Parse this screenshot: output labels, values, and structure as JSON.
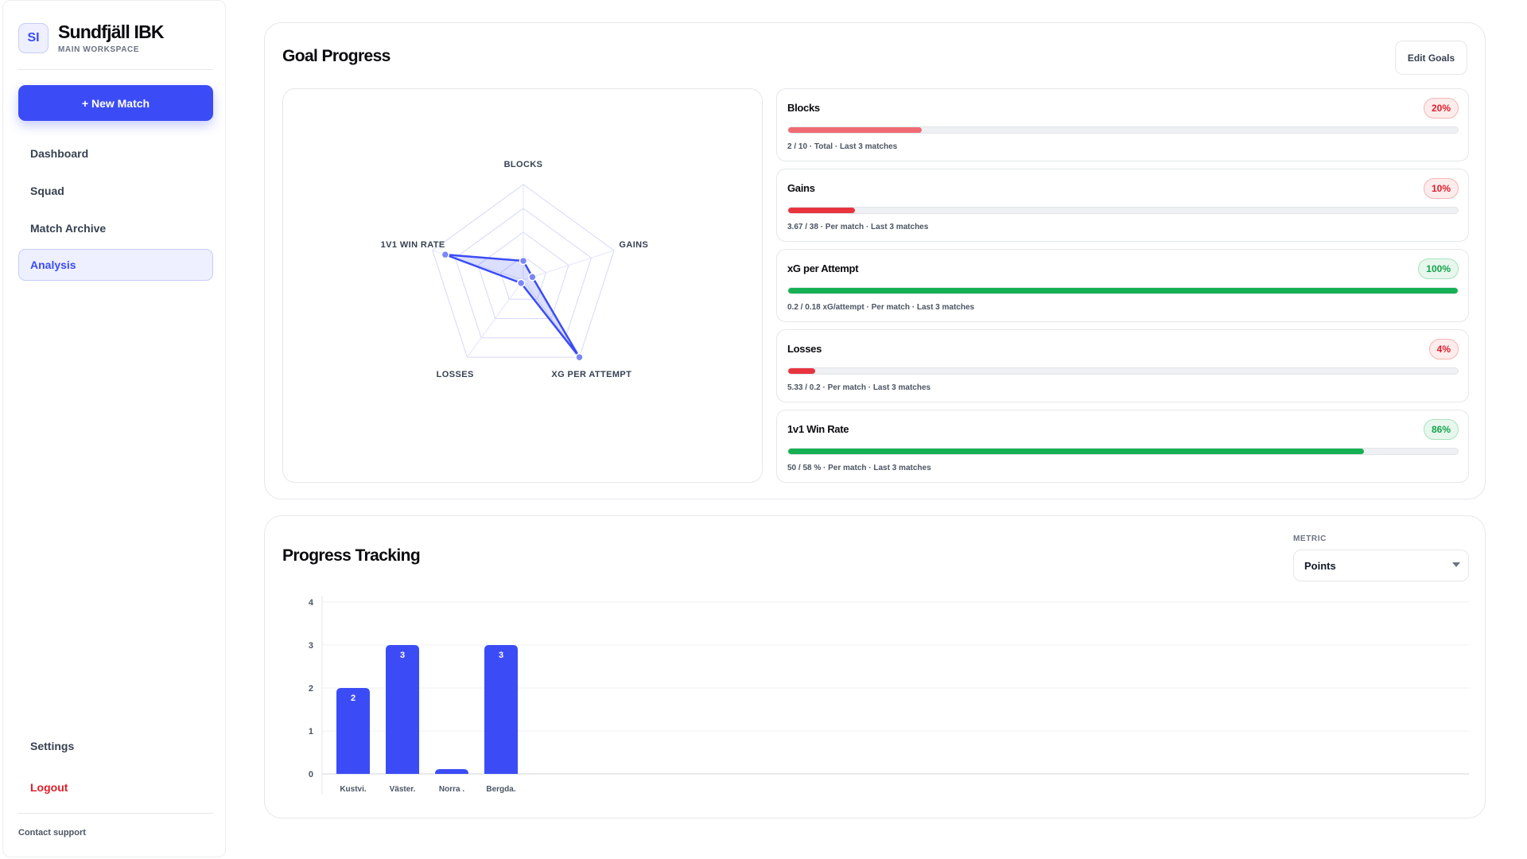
{
  "sidebar": {
    "logo_initials": "SI",
    "team_name": "Sundfjäll IBK",
    "workspace": "MAIN WORKSPACE",
    "new_match_label": "+ New Match",
    "nav": [
      {
        "label": "Dashboard",
        "active": false
      },
      {
        "label": "Squad",
        "active": false
      },
      {
        "label": "Match Archive",
        "active": false
      },
      {
        "label": "Analysis",
        "active": true
      }
    ],
    "settings_label": "Settings",
    "logout_label": "Logout",
    "contact_label": "Contact support"
  },
  "goal_progress": {
    "title": "Goal Progress",
    "edit_label": "Edit Goals",
    "radar": {
      "axes": [
        "BLOCKS",
        "GAINS",
        "XG PER ATTEMPT",
        "LOSSES",
        "1V1 WIN RATE"
      ],
      "values": [
        0.2,
        0.1,
        1.0,
        0.04,
        0.86
      ]
    },
    "goals": [
      {
        "name": "Blocks",
        "percent_label": "20%",
        "fraction": 0.2,
        "detail": "2 / 10 · Total · Last 3 matches",
        "status": "red",
        "bar_color": "#ef6b73"
      },
      {
        "name": "Gains",
        "percent_label": "10%",
        "fraction": 0.1,
        "detail": "3.67 / 38 · Per match · Last 3 matches",
        "status": "red",
        "bar_color": "#e8343f"
      },
      {
        "name": "xG per Attempt",
        "percent_label": "100%",
        "fraction": 1.0,
        "detail": "0.2 / 0.18 xG/attempt · Per match · Last 3 matches",
        "status": "green",
        "bar_color": "#16b054"
      },
      {
        "name": "Losses",
        "percent_label": "4%",
        "fraction": 0.04,
        "detail": "5.33 / 0.2 · Per match · Last 3 matches",
        "status": "red",
        "bar_color": "#e8343f"
      },
      {
        "name": "1v1 Win Rate",
        "percent_label": "86%",
        "fraction": 0.86,
        "detail": "50 / 58 % · Per match · Last 3 matches",
        "status": "green",
        "bar_color": "#16b054"
      }
    ]
  },
  "progress_tracking": {
    "title": "Progress Tracking",
    "metric_label": "METRIC",
    "metric_value": "Points"
  },
  "chart_data": {
    "type": "bar",
    "categories": [
      "Kustvi.",
      "Väster.",
      "Norra .",
      "Bergda."
    ],
    "values": [
      2,
      3,
      0,
      3
    ],
    "data_labels": [
      "2",
      "3",
      "",
      "3"
    ],
    "yticks": [
      "0",
      "1",
      "2",
      "3",
      "4"
    ],
    "ylim": [
      0,
      4
    ],
    "grid": true,
    "bar_color": "#3b4cf6"
  },
  "colors": {
    "accent": "#3b4cf6",
    "danger": "#e11d2a",
    "success": "#16b054"
  }
}
